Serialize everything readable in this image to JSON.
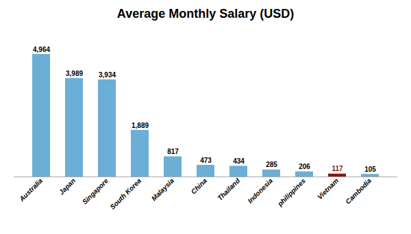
{
  "chart_data": {
    "type": "bar",
    "title": "Average Monthly Salary (USD)",
    "categories": [
      "Australia",
      "Japan",
      "Singapore",
      "South Korea",
      "Malaysia",
      "China",
      "Thailand",
      "Indonesia",
      "philippines",
      "Vietnam",
      "Cambodia"
    ],
    "values": [
      4964,
      3989,
      3934,
      1889,
      817,
      473,
      434,
      285,
      206,
      117,
      105
    ],
    "value_labels": [
      "4,964",
      "3,989",
      "3,934",
      "1,889",
      "817",
      "473",
      "434",
      "285",
      "206",
      "117",
      "105"
    ],
    "color": "#6baed6",
    "colors": [
      "#6baed6",
      "#6baed6",
      "#6baed6",
      "#6baed6",
      "#6baed6",
      "#6baed6",
      "#6baed6",
      "#6baed6",
      "#6baed6",
      "#8b1414",
      "#6baed6"
    ],
    "ylim": [
      0,
      5600
    ],
    "data_labels": true,
    "tick_labels": "x",
    "grid": false
  }
}
